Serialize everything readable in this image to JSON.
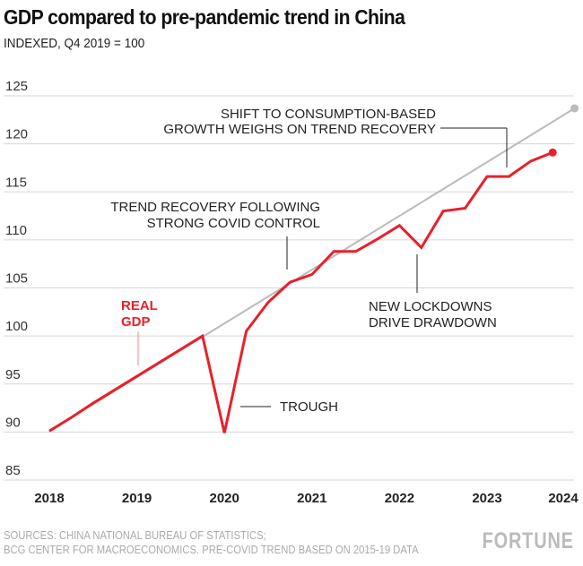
{
  "chart_data": {
    "type": "line",
    "title": "GDP compared to pre-pandemic trend in China",
    "subtitle": "INDEXED, Q4 2019 = 100",
    "x_ticks": [
      "2018",
      "2019",
      "2020",
      "2021",
      "2022",
      "2023",
      "2024"
    ],
    "y_ticks": [
      85,
      90,
      95,
      100,
      105,
      110,
      115,
      120,
      125
    ],
    "ylim": [
      85,
      125
    ],
    "grid": true,
    "series": [
      {
        "name": "REAL GDP",
        "color": "#e8202a",
        "x": [
          "2018 Q1",
          "2018 Q2",
          "2018 Q3",
          "2018 Q4",
          "2019 Q1",
          "2019 Q2",
          "2019 Q3",
          "2019 Q4",
          "2020 Q1",
          "2020 Q2",
          "2020 Q3",
          "2020 Q4",
          "2021 Q1",
          "2021 Q2",
          "2021 Q3",
          "2021 Q4",
          "2022 Q1",
          "2022 Q2",
          "2022 Q3",
          "2022 Q4",
          "2023 Q1",
          "2023 Q2",
          "2023 Q3",
          "2023 Q4"
        ],
        "values": [
          90.1,
          91.5,
          93.0,
          94.4,
          95.8,
          97.2,
          98.6,
          100.0,
          89.9,
          100.5,
          103.5,
          105.6,
          106.4,
          108.8,
          108.8,
          110.1,
          111.5,
          109.2,
          113.0,
          113.3,
          116.6,
          116.6,
          118.2,
          119.1
        ]
      },
      {
        "color": "#bbbbbb",
        "x": [
          "2018 Q1",
          "2024 Q1"
        ],
        "values": [
          90.1,
          123.7
        ]
      }
    ],
    "annotations": {
      "shift": [
        "SHIFT TO CONSUMPTION-BASED",
        "GROWTH WEIGHS ON TREND RECOVERY"
      ],
      "trend": [
        "TREND RECOVERY FOLLOWING",
        "STRONG COVID CONTROL"
      ],
      "lockdowns": [
        "NEW LOCKDOWNS",
        "DRIVE DRAWDOWN"
      ],
      "trough": "TROUGH",
      "real_gdp": [
        "REAL",
        "GDP"
      ]
    }
  },
  "footer": {
    "sources": [
      "SOURCES: CHINA NATIONAL BUREAU OF STATISTICS;",
      "BCG CENTER FOR MACROECONOMICS. PRE-COVID TREND BASED ON 2015-19 DATA"
    ],
    "logo": "FORTUNE"
  }
}
